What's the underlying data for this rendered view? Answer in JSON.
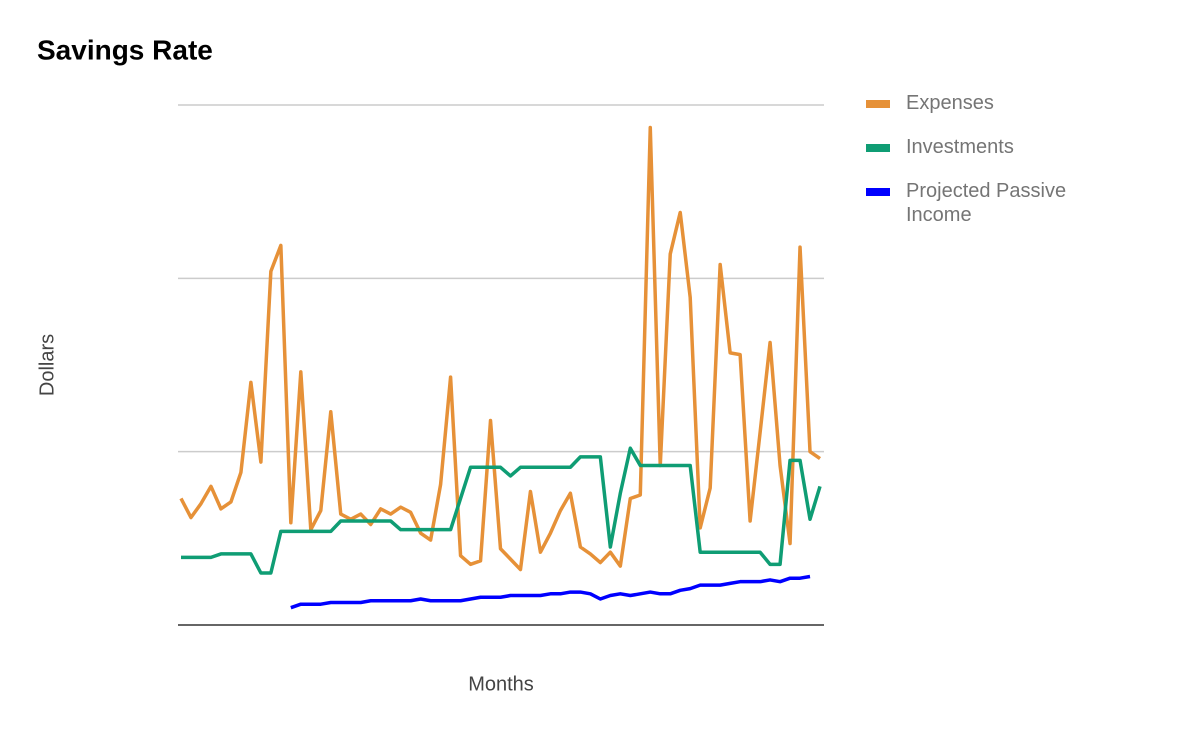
{
  "chart_data": {
    "type": "line",
    "title": "Savings Rate",
    "y_label": "Dollars",
    "x_label": "Months",
    "categories": [
      null,
      null,
      null,
      null,
      null,
      null,
      null,
      null,
      null,
      null,
      null,
      null,
      null,
      null,
      null,
      null,
      null,
      null,
      null,
      null,
      null,
      null,
      null,
      null,
      null,
      null,
      null,
      null,
      null,
      null,
      null,
      null,
      null,
      null,
      null,
      null,
      null,
      null,
      null,
      null,
      null,
      null,
      null,
      null,
      null,
      null,
      null,
      null,
      null,
      null,
      null,
      null,
      null,
      null,
      null,
      null,
      null,
      null,
      null,
      null,
      null,
      null,
      null,
      null,
      null
    ],
    "series": [
      {
        "name": "Expenses",
        "color": "#e69138",
        "values": [
          73,
          62,
          70,
          80,
          67,
          71,
          88,
          140,
          94,
          204,
          219,
          59,
          146,
          55,
          66,
          123,
          64,
          61,
          64,
          58,
          67,
          64,
          68,
          65,
          53,
          49,
          81,
          143,
          40,
          35,
          37,
          118,
          44,
          38,
          32,
          77,
          42,
          53,
          66,
          76,
          45,
          41,
          36,
          42,
          34,
          73,
          75,
          287,
          92,
          214,
          238,
          189,
          56,
          79,
          208,
          157,
          156,
          60,
          111,
          163,
          92,
          47,
          218,
          100,
          96
        ]
      },
      {
        "name": "Investments",
        "color": "#0f9d74",
        "values": [
          39,
          39,
          39,
          39,
          41,
          41,
          41,
          41,
          30,
          30,
          54,
          54,
          54,
          54,
          54,
          54,
          60,
          60,
          60,
          60,
          60,
          60,
          55,
          55,
          55,
          55,
          55,
          55,
          73,
          91,
          91,
          91,
          91,
          86,
          91,
          91,
          91,
          91,
          91,
          91,
          97,
          97,
          97,
          45,
          76,
          102,
          92,
          92,
          92,
          92,
          92,
          92,
          42,
          42,
          42,
          42,
          42,
          42,
          42,
          35,
          35,
          95,
          95,
          61,
          80
        ]
      },
      {
        "name": "Projected Passive Income",
        "color": "#0000ff",
        "values": [
          null,
          null,
          null,
          null,
          null,
          null,
          null,
          null,
          null,
          null,
          null,
          10,
          12,
          12,
          12,
          13,
          13,
          13,
          13,
          14,
          14,
          14,
          14,
          14,
          15,
          14,
          14,
          14,
          14,
          15,
          16,
          16,
          16,
          17,
          17,
          17,
          17,
          18,
          18,
          19,
          19,
          18,
          15,
          17,
          18,
          17,
          18,
          19,
          18,
          18,
          20,
          21,
          23,
          23,
          23,
          24,
          25,
          25,
          25,
          26,
          25,
          27,
          27,
          28,
          null
        ]
      }
    ],
    "ylim": [
      0,
      300
    ],
    "yticks": [
      0,
      100,
      200,
      300
    ],
    "ytick_labels": false,
    "grid": true,
    "legend": "right"
  }
}
